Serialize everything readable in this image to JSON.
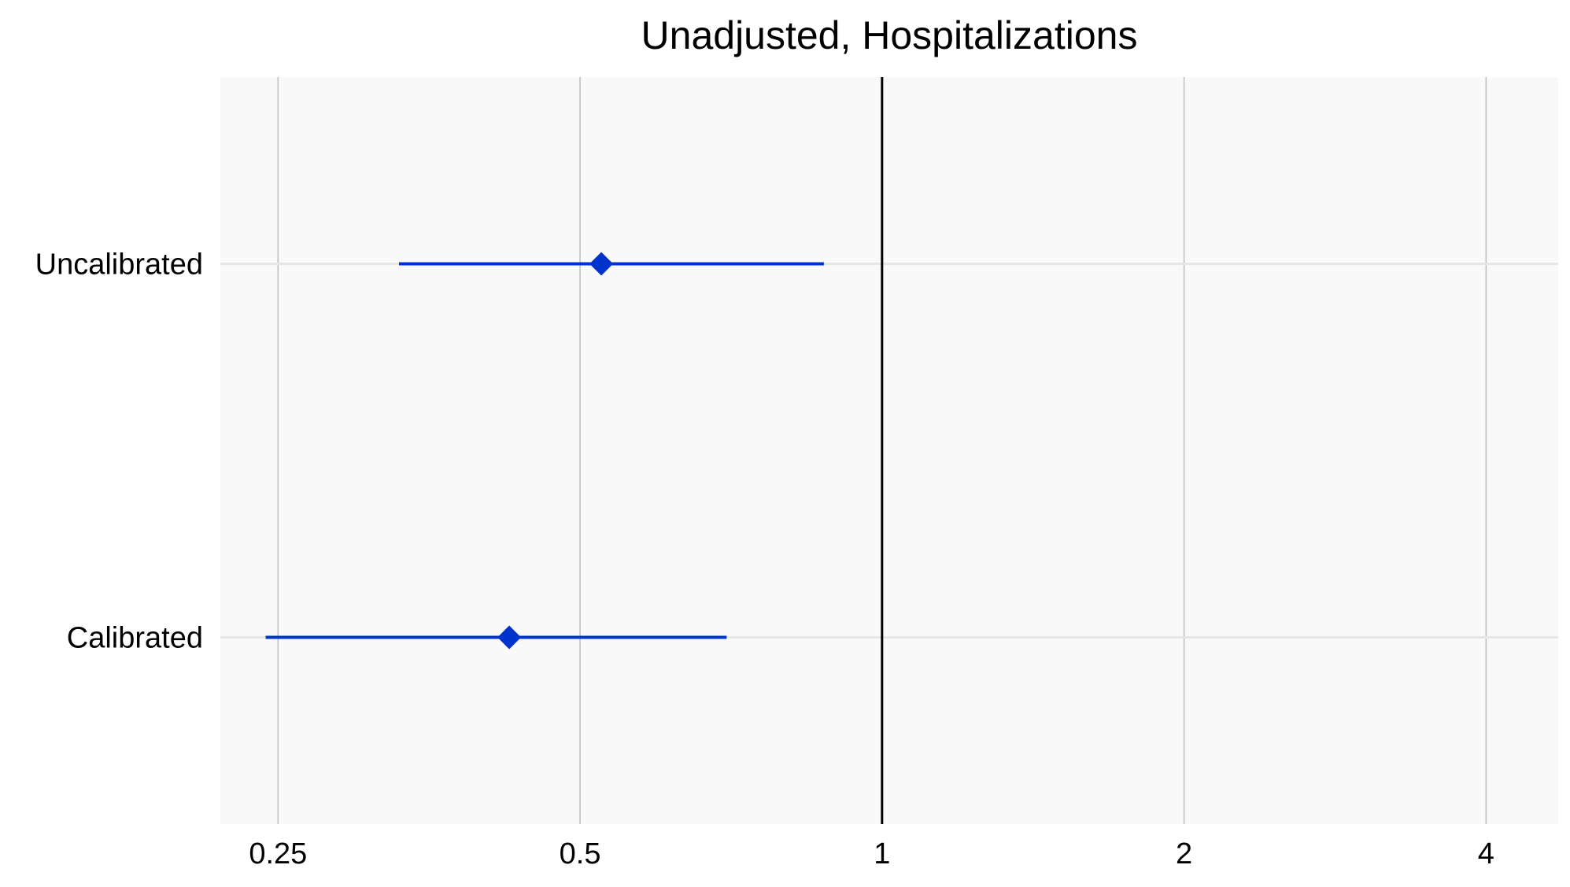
{
  "chart_data": {
    "type": "forest",
    "title": "Unadjusted, Hospitalizations",
    "xlabel": "",
    "ylabel": "",
    "x_scale": "log",
    "xlim": [
      0.219,
      4.72
    ],
    "x_ticks": [
      0.25,
      0.5,
      1,
      2,
      4
    ],
    "x_tick_labels": [
      "0.25",
      "0.5",
      "1",
      "2",
      "4"
    ],
    "reference_line": 1,
    "grid": true,
    "categories": [
      "Uncalibrated",
      "Calibrated"
    ],
    "estimates": [
      {
        "label": "Uncalibrated",
        "estimate": 0.525,
        "lower": 0.33,
        "upper": 0.875
      },
      {
        "label": "Calibrated",
        "estimate": 0.425,
        "lower": 0.243,
        "upper": 0.7
      }
    ],
    "colors": {
      "panel_background": "#f9f9f9",
      "grid_vertical": "#bdbdbd",
      "grid_horizontal": "#e6e6e6",
      "reference_line": "#000000",
      "estimate": "#0033cc"
    }
  }
}
